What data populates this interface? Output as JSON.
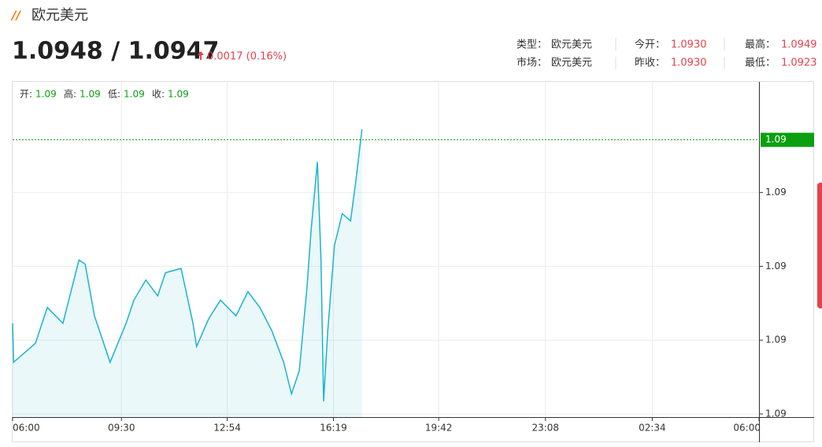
{
  "header": {
    "title": "欧元美元",
    "price": "1.0948 / 1.0947",
    "change": "0.0017 (0.16%)"
  },
  "info": [
    {
      "label": "类型：",
      "value": "欧元美元"
    },
    {
      "label": "今开：",
      "value": "1.0930"
    },
    {
      "label": "最高：",
      "value": "1.0949"
    },
    {
      "label": "市场：",
      "value": "欧元美元"
    },
    {
      "label": "昨收：",
      "value": "1.0930"
    },
    {
      "label": "最低：",
      "value": "1.0923"
    }
  ],
  "ohlc": [
    {
      "label": "开:",
      "value": "1.09"
    },
    {
      "label": "高:",
      "value": "1.09"
    },
    {
      "label": "低:",
      "value": "1.09"
    },
    {
      "label": "收:",
      "value": "1.09"
    }
  ],
  "chart_data": {
    "type": "line",
    "grid": true,
    "x": [
      0,
      2,
      44,
      67,
      97,
      128,
      140,
      158,
      188,
      219,
      234,
      257,
      280,
      295,
      325,
      348,
      355,
      378,
      401,
      431,
      454,
      477,
      500,
      523,
      538,
      553,
      568,
      576,
      588,
      595,
      600,
      608,
      621,
      636,
      652,
      662,
      674
    ],
    "series": [
      {
        "color": "#1ab3cc",
        "values": [
          1.09306,
          1.09269,
          1.09287,
          1.09321,
          1.09306,
          1.09366,
          1.09362,
          1.09313,
          1.09269,
          1.09306,
          1.09328,
          1.09347,
          1.09332,
          1.09354,
          1.09358,
          1.09306,
          1.09284,
          1.0931,
          1.09328,
          1.09313,
          1.09336,
          1.09321,
          1.09299,
          1.09269,
          1.09239,
          1.09261,
          1.0934,
          1.09395,
          1.09459,
          1.09366,
          1.09232,
          1.09299,
          1.0938,
          1.0941,
          1.09403,
          1.0944,
          1.0949
        ]
      }
    ],
    "xlim": [
      0,
      1440
    ],
    "xticks": [
      {
        "value": 0,
        "label": "06:00"
      },
      {
        "value": 210,
        "label": "09:30"
      },
      {
        "value": 414,
        "label": "12:54"
      },
      {
        "value": 619,
        "label": "16:19"
      },
      {
        "value": 822,
        "label": "19:42"
      },
      {
        "value": 1028,
        "label": "23:08"
      },
      {
        "value": 1234,
        "label": "02:34"
      },
      {
        "value": 1440,
        "label": "06:00"
      }
    ],
    "ylim": [
      1.09217,
      1.09535
    ],
    "yticks": [
      {
        "value": 1.0922,
        "label": "1.09"
      },
      {
        "value": 1.0929,
        "label": "1.09"
      },
      {
        "value": 1.0936,
        "label": "1.09"
      },
      {
        "value": 1.0943,
        "label": "1.09"
      }
    ],
    "price_line": {
      "value": 1.0948,
      "label": "1.09",
      "color": "#0aa010"
    }
  }
}
